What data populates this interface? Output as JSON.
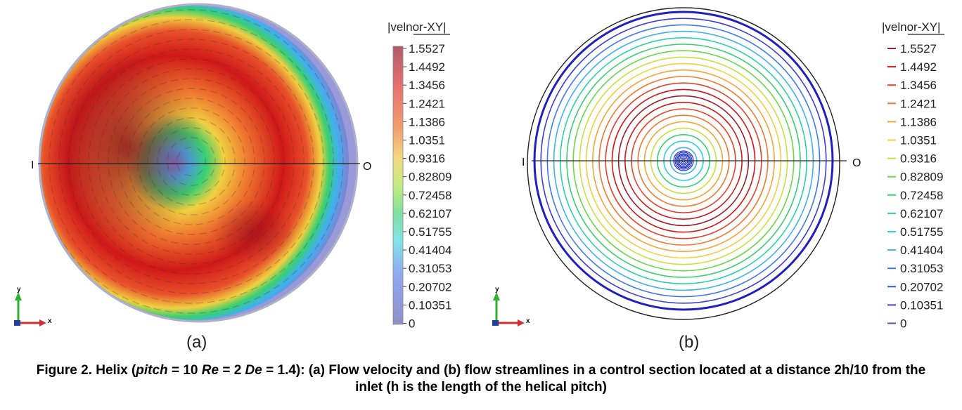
{
  "panel_a": {
    "sublabel": "(a)",
    "legend_title": "|velnor-XY|",
    "axis_left": "I",
    "axis_right": "O",
    "triad": {
      "y": "y",
      "x": "x"
    }
  },
  "panel_b": {
    "sublabel": "(b)",
    "legend_title": "|velnor-XY|",
    "axis_left": "I",
    "axis_right": "O",
    "triad": {
      "y": "y",
      "x": "x"
    }
  },
  "legend_values": [
    "1.5527",
    "1.4492",
    "1.3456",
    "1.2421",
    "1.1386",
    "1.0351",
    "0.9316",
    "0.82809",
    "0.72458",
    "0.62107",
    "0.51755",
    "0.41404",
    "0.31053",
    "0.20702",
    "0.10351",
    "0"
  ],
  "legend_colors": [
    "#9c1c2e",
    "#d01818",
    "#e8402a",
    "#f07830",
    "#f4a438",
    "#f0d040",
    "#c8e040",
    "#6ad848",
    "#38d070",
    "#28d4a8",
    "#28d0e0",
    "#40b0f0",
    "#4078f0",
    "#3850e8",
    "#3c3cd8",
    "#5050b8"
  ],
  "caption": {
    "prefix": "Figure 2. Helix (",
    "pitch_word": "pitch",
    "pitch_value": " = 10 ",
    "re_word": "Re",
    "re_value": " = 2 ",
    "de_word": "De",
    "de_value": " = 1.4): (a) Flow velocity and (b) flow streamlines in a control section located at a distance 2h/10 from the inlet (h is the length of the helical pitch)"
  }
}
